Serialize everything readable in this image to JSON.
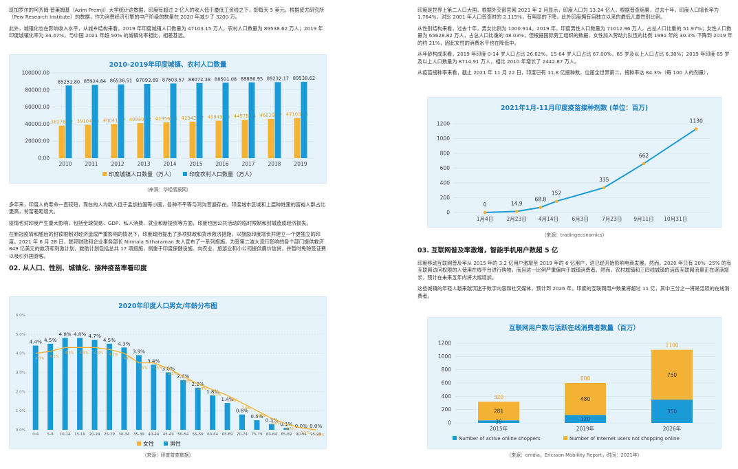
{
  "left": {
    "p1": "班加罗尔的阿齐姆·普莱姆基（Azim Premji）大学统计这数据，印度有超过 2 亿人的收入低于最低工资线之下，即每天 5 美元。根据皮尤研究所（Pew Research Institute）的数据，作为消费经济引擎的中产阶级的数量在 2020 年减少了 3200 万。",
    "p2": "此外，城镇化也在影响收入水平，从城乡结构来看，2019 年印度城镇人口数量为 47103.15 万人，农村人口数量为 89538.62 万人；2019 年印度城镇化率为 34.47%，与中国 2021 年超 50% 的城镇化率相比，相差甚远。",
    "p3": "多年来，印度人的寿命一直较短，现在的人均收入低于孟加拉国等小国，各种不平等与鸿沟普遍存在。印度城市区域和上层种姓里的富裕人群占比更高，贫富差距增大。",
    "p4": "疫情也对印度产生重大影响，包括全球贸易、GDP、私人消费、就业和新投资等方面，印度也因公共活动的临时限制和封城造成经济损失。",
    "p5": "在新冠疫情和随后的封锁限制对经济造成严重影响的情况下，印度政府提出了多项财政和货币救济措施，以鼓励印度增长并建立一个更独立的印度。2021 年 6 月 28 日，联邦财政和企业事务部长 Nirmala Sitharaman 夫人宣布了一系列措施，为受第二波大流行影响的各个部门提供救济 849 亿美元的救济和刺激计划，救助计划包括总共 17 项措施，侧重于印度保健设施、向农业、旅游业和小公司提供廉价信贷，并暂时免除签证费以吸引外国游客。",
    "section2": "02. 从人口、性别、城镇化、接种疫苗率看印度",
    "source1": "（来源：华经情报网）",
    "source2": "（来源：印度普查数据）"
  },
  "right": {
    "p1": "印度是世界上第二人口大国，根据外交部官网 2021 年 2 月显示，印度人口为 13.24 亿人，根据普查结果，过去十年，印度人口增长率为 1.764%，对比 2001 年人口普查时的 2.115%，有明显的下降，此外印度拥有自独立以来的最低儿童性别比例。",
    "p2": "从性别结构来看，过去十年，男女比例为 1000:914。2019 年，印度男性人口数量为 71012.96 万人，占总人口比重的 51.97%；女性人口数量为 65628.82 万人，占总人口比重的 48.03%，但根据国际劳工组织的数据，女性加入劳动力队伍的比例 1991 年的 30.3% 下降到 2019 年的约 21%，因此女性的消费水平也在降低中。",
    "p3": "从年龄构成来看，2019 年印度 0-14 岁人口占比 26.62%，15-64 岁人口占比 67.00%，65 岁及以上人口占比 6.38%；2019 年印度 65 岁及以上人口数量为 8714.91 万人，相比 2010 年増长了 2442.87 万人。",
    "p4": "从疫苗接种率来看，截止 2021 年 11 月 22 日，印度已有 11.8 亿接种数，位居全世界第二，接种率达 84.3%（每 100 人的剂量），",
    "section3": "03. 互联网普及率激增，智能手机用户数超 5 亿",
    "p5": "印度移动互联网普及率从 2015 年的 3.2 亿用户激增至 2019 年的 6 亿用户，这已经开始影响电商发展。然而，2020 年只有 20% -25% 的有互联网访问权限的人使用在线平台进行购物，而且这一比例严重偏向于城镇消费者。然而，农村城镇和三四线城镇的活跃互联网流量正在逐渐增长，预计在未来五年内将大幅增加。",
    "p6": "这些城镇的年轻人越来越沉迷于数字内容和社交媒体，预计到 2026 年，印度的互联网用户数量将超过 11 亿，其中三分之一将是活跃的在线消费者。",
    "source3": "（来源：tradingeconomics）",
    "source4": "（来源：omdia，Ericsson Mobillity Report，时间：2021年）"
  },
  "colors": {
    "orange": "#f5b335",
    "blue": "#1a9ad6",
    "title": "#1e7fc2"
  },
  "chart_data": [
    {
      "type": "bar",
      "title": "2010-2019年印度城镇、农村人口数量",
      "categories": [
        "2010",
        "2011",
        "2012",
        "2013",
        "2014",
        "2015",
        "2016",
        "2017",
        "2018",
        "2019"
      ],
      "ylim": [
        0,
        100000
      ],
      "yticks": [
        "0.00",
        "20000.00",
        "40000.00",
        "60000.00",
        "80000.00",
        "100000.00"
      ],
      "series": [
        {
          "name": "印度城镇人口数量（万人）",
          "values": [
            38176.32,
            39104.03,
            40041.77,
            40990.92,
            41956.85,
            42942.87,
            43949.98,
            44978.94,
            46029.37,
            47103.15
          ],
          "labels": [
            "38176.32",
            "39104.03",
            "40041.77",
            "40990.92",
            "41956.85",
            "42942.87",
            "43949.98",
            "44978.94",
            "46029.37",
            "47103.15"
          ]
        },
        {
          "name": "印度农村人口数量（万人）",
          "values": [
            85251.8,
            85924.84,
            86536.51,
            87093.69,
            87603.57,
            88072.38,
            88501.08,
            88886.95,
            89232.17,
            89538.62
          ],
          "labels": [
            "85251.80",
            "85924.84",
            "86536.51",
            "87093.69",
            "87603.57",
            "88072.38",
            "88501.08",
            "88886.95",
            "89232.17",
            "89538.62"
          ]
        }
      ]
    },
    {
      "type": "bar",
      "title": "2020年印度人口男女/年龄分布图",
      "categories": [
        "0-4",
        "5-9",
        "10-14",
        "15-19",
        "20-24",
        "25-29",
        "30-34",
        "35-39",
        "40-44",
        "45-49",
        "50-54",
        "55-59",
        "60-64",
        "65-69",
        "70-74",
        "75-79",
        "80-84",
        "85-89",
        "90-94",
        "95-99"
      ],
      "ylim": [
        0,
        6
      ],
      "yticks": [
        "0.0%",
        "1.0%",
        "2.0%",
        "3.0%",
        "4.0%",
        "5.0%",
        "6.0%"
      ],
      "series": [
        {
          "name": "女性",
          "values": [
            4.0,
            4.1,
            4.3,
            4.3,
            4.3,
            4.2,
            4.0,
            3.5,
            3.5,
            3.2,
            2.8,
            2.4,
            2.1,
            1.8,
            1.4,
            1.0,
            0.6,
            0.3,
            0.1,
            0.0
          ],
          "labels": [
            "4.0%",
            "4.1%",
            "4.3%",
            "4.3%",
            "4.3%",
            "4.2%",
            "4.0%",
            "3.5%",
            "3.5%",
            "3.2%",
            "2.8%",
            "2.4%",
            "2.1%",
            "1.8%",
            "1.4%",
            "1.0%",
            "0.6%",
            "0.3%",
            "0.1%",
            "0.0%"
          ]
        },
        {
          "name": "男性",
          "values": [
            4.4,
            4.5,
            4.8,
            4.8,
            4.7,
            4.5,
            4.3,
            3.9,
            3.4,
            3.0,
            2.6,
            2.2,
            1.8,
            1.4,
            0.8,
            0.5,
            0.3,
            0.1,
            0.0,
            0.0
          ],
          "labels": [
            "4.4%",
            "4.5%",
            "4.8%",
            "4.8%",
            "4.7%",
            "4.5%",
            "4.3%",
            "3.9%",
            "3.4%",
            "3.0%",
            "2.6%",
            "2.2%",
            "1.8%",
            "1.4%",
            "0.8%",
            "0.5%",
            "0.3%",
            "0.1%",
            "0.0%",
            "0.0%"
          ]
        }
      ]
    },
    {
      "type": "line",
      "title": "2021年1月-11月印度疫苗接种剂数 (单位：百万)",
      "x": [
        "1月4日",
        "2月23日",
        "4月14日",
        "6月3日",
        "7月23日",
        "9月11日",
        "10月31日"
      ],
      "ylim": [
        0,
        1200
      ],
      "yticks": [
        "0",
        "200",
        "400",
        "600",
        "800",
        "1000",
        "1200"
      ],
      "points": [
        {
          "xi": 0,
          "y": 0,
          "label": "0"
        },
        {
          "xi": 1,
          "y": 14.9,
          "label": "14.9"
        },
        {
          "xi": 1.75,
          "y": 68.8,
          "label": "68.8"
        },
        {
          "xi": 2.25,
          "y": 152,
          "label": "152"
        },
        {
          "xi": 3.75,
          "y": 335,
          "label": "335"
        },
        {
          "xi": 5,
          "y": 662,
          "label": "662"
        },
        {
          "xi": 6.65,
          "y": 1130,
          "label": "1130"
        }
      ]
    },
    {
      "type": "bar",
      "title": "互联网用户数与活跃在线消费者数量（百万）",
      "categories": [
        "2015年",
        "2019年",
        "2026年"
      ],
      "ylim": [
        0,
        1200
      ],
      "yticks": [
        "0",
        "200",
        "400",
        "600",
        "800",
        "1000",
        "1200"
      ],
      "series": [
        {
          "name": "Number of active online shoppers",
          "values": [
            39,
            120,
            350
          ],
          "labels": [
            "39",
            "120",
            "350"
          ]
        },
        {
          "name": "Number of Internet users not shopping online",
          "values": [
            281,
            480,
            750
          ],
          "labels": [
            "281",
            "480",
            "750"
          ]
        }
      ],
      "totals": [
        "320",
        "600",
        "1100"
      ]
    }
  ]
}
